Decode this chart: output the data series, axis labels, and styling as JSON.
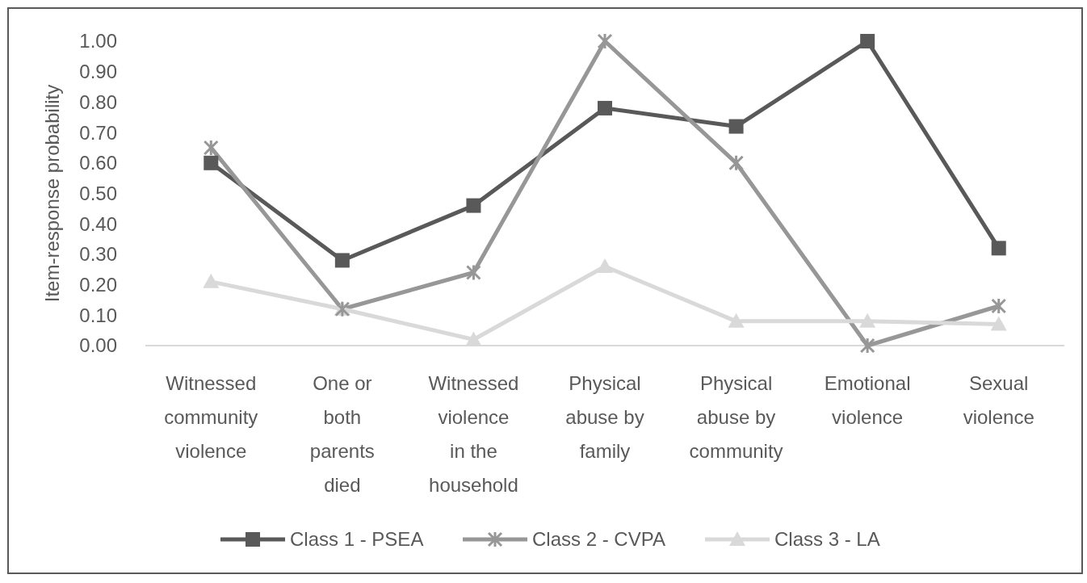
{
  "chart_data": {
    "type": "line",
    "ylabel": "Item-response probability",
    "categories": [
      "Witnessed community violence",
      "One or both parents died",
      "Witnessed violence in the household",
      "Physical abuse by family",
      "Physical abuse by community",
      "Emotional violence",
      "Sexual violence"
    ],
    "series": [
      {
        "name": "Class 1 - PSEA",
        "color": "#595959",
        "marker": "square",
        "values": [
          0.6,
          0.28,
          0.46,
          0.78,
          0.72,
          1.0,
          0.32
        ]
      },
      {
        "name": "Class 2 - CVPA",
        "color": "#979797",
        "marker": "cross",
        "values": [
          0.65,
          0.12,
          0.24,
          1.0,
          0.6,
          0.0,
          0.13
        ]
      },
      {
        "name": "Class 3 - LA",
        "color": "#d9d9d9",
        "marker": "triangle",
        "values": [
          0.21,
          0.12,
          0.02,
          0.26,
          0.08,
          0.08,
          0.07
        ]
      }
    ],
    "ylim": [
      0,
      1
    ],
    "yticks": [
      {
        "value": 0,
        "label": "0.00"
      },
      {
        "value": 0.1,
        "label": "0.10"
      },
      {
        "value": 0.2,
        "label": "0.20"
      },
      {
        "value": 0.3,
        "label": "0.30"
      },
      {
        "value": 0.4,
        "label": "0.40"
      },
      {
        "value": 0.5,
        "label": "0.50"
      },
      {
        "value": 0.6,
        "label": "0.60"
      },
      {
        "value": 0.7,
        "label": "0.70"
      },
      {
        "value": 0.8,
        "label": "0.80"
      },
      {
        "value": 0.9,
        "label": "0.90"
      },
      {
        "value": 1,
        "label": "1.00"
      }
    ],
    "grid": false,
    "legend": "bottom",
    "line_style": "solid"
  }
}
